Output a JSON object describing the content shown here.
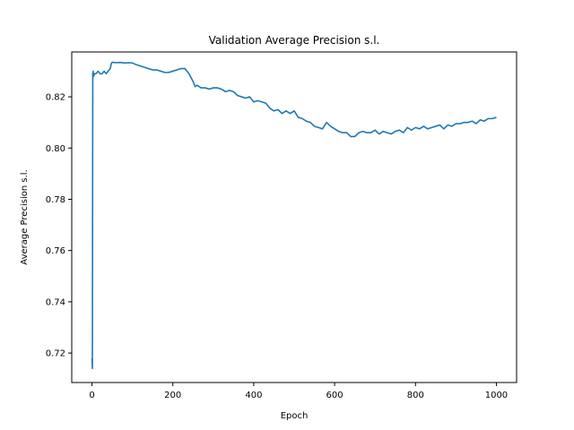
{
  "chart_data": {
    "type": "line",
    "title": "Validation Average Precision s.l.",
    "xlabel": "Epoch",
    "ylabel": "Average Precision s.l.",
    "xlim": [
      -50,
      1050
    ],
    "ylim": [
      0.7085,
      0.8375
    ],
    "xticks": [
      0,
      200,
      400,
      600,
      800,
      1000
    ],
    "yticks": [
      0.72,
      0.74,
      0.76,
      0.78,
      0.8,
      0.82
    ],
    "ytick_labels": [
      "0.72",
      "0.74",
      "0.76",
      "0.78",
      "0.80",
      "0.82"
    ],
    "grid": false,
    "line_color": "#1f77b4",
    "series": [
      {
        "x": [
          0,
          1,
          2,
          3,
          4,
          6,
          8,
          10,
          15,
          20,
          25,
          30,
          35,
          40,
          45,
          48,
          50,
          60,
          70,
          80,
          90,
          100,
          110,
          120,
          130,
          140,
          150,
          160,
          170,
          180,
          190,
          200,
          210,
          220,
          230,
          240,
          250,
          255,
          260,
          270,
          280,
          290,
          300,
          310,
          320,
          330,
          340,
          350,
          360,
          370,
          380,
          390,
          400,
          410,
          420,
          430,
          440,
          450,
          460,
          470,
          480,
          490,
          500,
          510,
          520,
          530,
          540,
          550,
          560,
          570,
          580,
          590,
          600,
          610,
          620,
          630,
          640,
          650,
          660,
          670,
          680,
          690,
          700,
          710,
          720,
          730,
          740,
          750,
          760,
          770,
          780,
          790,
          800,
          810,
          820,
          830,
          840,
          850,
          860,
          870,
          880,
          890,
          900,
          910,
          920,
          930,
          940,
          950,
          960,
          970,
          980,
          990,
          1000
        ],
        "y": [
          0.718,
          0.714,
          0.829,
          0.83,
          0.828,
          0.829,
          0.829,
          0.829,
          0.83,
          0.829,
          0.829,
          0.83,
          0.829,
          0.83,
          0.831,
          0.833,
          0.8335,
          0.8333,
          0.8334,
          0.8332,
          0.8333,
          0.8332,
          0.8325,
          0.832,
          0.8315,
          0.831,
          0.8305,
          0.8305,
          0.83,
          0.8295,
          0.8295,
          0.83,
          0.8305,
          0.831,
          0.831,
          0.829,
          0.826,
          0.824,
          0.8245,
          0.8235,
          0.8235,
          0.823,
          0.8235,
          0.8235,
          0.823,
          0.822,
          0.8225,
          0.822,
          0.8205,
          0.82,
          0.8195,
          0.82,
          0.818,
          0.8185,
          0.818,
          0.8175,
          0.8155,
          0.8145,
          0.815,
          0.8135,
          0.8145,
          0.8135,
          0.8145,
          0.812,
          0.8115,
          0.8105,
          0.81,
          0.8085,
          0.808,
          0.8075,
          0.81,
          0.8085,
          0.8075,
          0.8065,
          0.806,
          0.806,
          0.8045,
          0.8045,
          0.806,
          0.8065,
          0.806,
          0.806,
          0.807,
          0.8055,
          0.8065,
          0.806,
          0.8055,
          0.8065,
          0.807,
          0.806,
          0.808,
          0.807,
          0.808,
          0.8075,
          0.8085,
          0.8075,
          0.808,
          0.8085,
          0.809,
          0.8075,
          0.809,
          0.8085,
          0.8095,
          0.8095,
          0.81,
          0.81,
          0.8105,
          0.8095,
          0.811,
          0.8105,
          0.8115,
          0.8115,
          0.812
        ]
      }
    ]
  }
}
